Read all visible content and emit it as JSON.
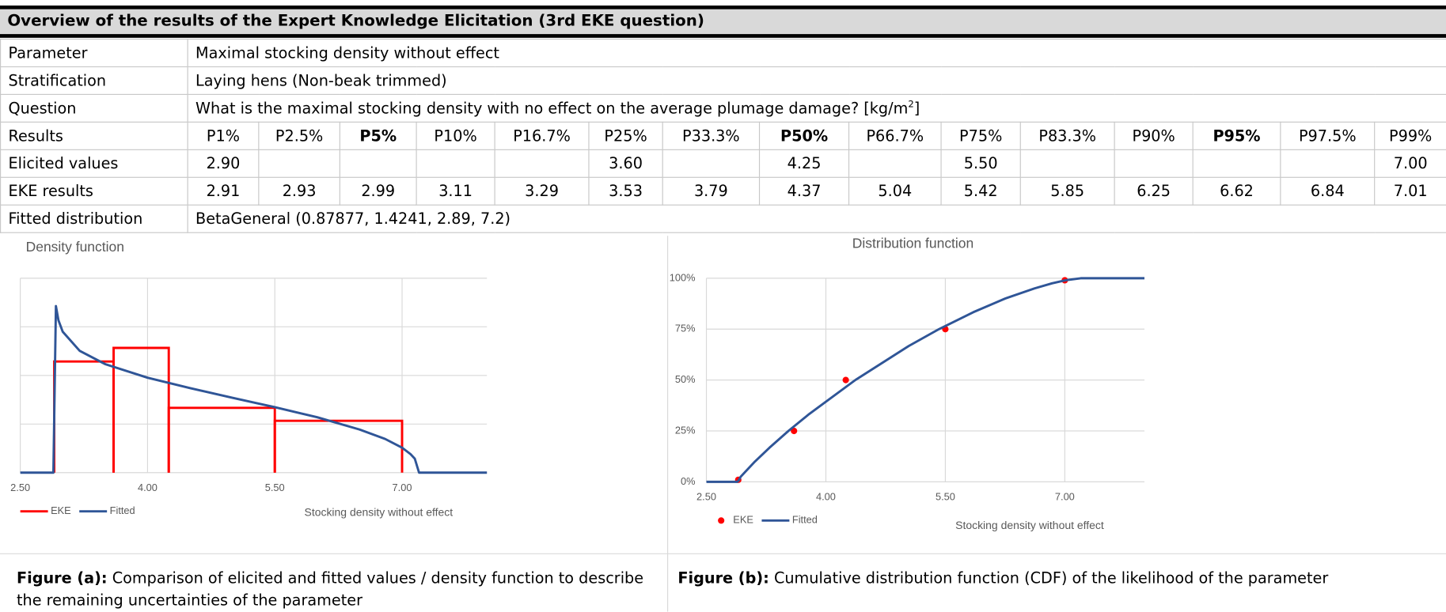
{
  "title": "Overview of the results of the Expert Knowledge Elicitation (3rd EKE question)",
  "table": {
    "rows": [
      {
        "label": "Parameter",
        "text": "Maximal stocking density without effect"
      },
      {
        "label": "Stratification",
        "text": "Laying hens (Non-beak trimmed)"
      },
      {
        "label": "Question",
        "text": "What is the maximal stocking density with no effect on the average plumage damage? [kg/m",
        "sup": "2",
        "after": "]"
      },
      {
        "label": "Results",
        "cells": [
          "P1%",
          "P2.5%",
          "P5%",
          "P10%",
          "P16.7%",
          "P25%",
          "P33.3%",
          "P50%",
          "P66.7%",
          "P75%",
          "P83.3%",
          "P90%",
          "P95%",
          "P97.5%",
          "P99%"
        ]
      },
      {
        "label": "Elicited values",
        "cells": [
          "2.90",
          null,
          null,
          null,
          null,
          "3.60",
          null,
          "4.25",
          null,
          "5.50",
          null,
          null,
          null,
          null,
          "7.00"
        ]
      },
      {
        "label": "EKE results",
        "cells": [
          "2.91",
          "2.93",
          "2.99",
          "3.11",
          "3.29",
          "3.53",
          "3.79",
          "4.37",
          "5.04",
          "5.42",
          "5.85",
          "6.25",
          "6.62",
          "6.84",
          "7.01"
        ]
      },
      {
        "label": "Fitted distribution",
        "text": "BetaGeneral (0.87877, 1.4241, 2.89, 7.2)"
      }
    ]
  },
  "chart_data": [
    {
      "type": "histogram",
      "title": "Density function",
      "x_label": "Stocking density without effect",
      "xlim": [
        2.5,
        8.0
      ],
      "xticks": [
        {
          "value": 2.5,
          "label": "2.50"
        },
        {
          "value": 4.0,
          "label": "4.00"
        },
        {
          "value": 5.5,
          "label": "5.50"
        },
        {
          "value": 7.0,
          "label": "7.00"
        }
      ],
      "ylim": [
        0,
        0.6
      ],
      "yticks": [
        0,
        0.15,
        0.3,
        0.45,
        0.6
      ],
      "grid": true,
      "series": [
        {
          "name": "EKE",
          "type": "histogram",
          "color": "#ff0000",
          "bins": [
            2.9,
            3.6,
            4.25,
            5.5,
            7.0
          ],
          "values": [
            0.343,
            0.385,
            0.2,
            0.16
          ]
        },
        {
          "name": "Fitted",
          "type": "line",
          "color": "#2f5597",
          "x": [
            2.5,
            2.89,
            2.92,
            2.95,
            3.0,
            3.2,
            3.5,
            4.0,
            4.5,
            5.0,
            5.5,
            6.0,
            6.5,
            6.8,
            7.0,
            7.1,
            7.15,
            7.2,
            8.0
          ],
          "values": [
            0,
            0,
            0.514,
            0.47,
            0.435,
            0.376,
            0.335,
            0.293,
            0.261,
            0.231,
            0.202,
            0.171,
            0.133,
            0.104,
            0.077,
            0.057,
            0.043,
            0,
            0
          ]
        }
      ]
    },
    {
      "type": "line",
      "title": "Distribution function",
      "x_label": "Stocking density without effect",
      "xlim": [
        2.5,
        8.0
      ],
      "xticks": [
        {
          "value": 2.5,
          "label": "2.50"
        },
        {
          "value": 4.0,
          "label": "4.00"
        },
        {
          "value": 5.5,
          "label": "5.50"
        },
        {
          "value": 7.0,
          "label": "7.00"
        }
      ],
      "ylim": [
        0,
        100
      ],
      "yticks": [
        {
          "value": 0,
          "label": "0%"
        },
        {
          "value": 25,
          "label": "25%"
        },
        {
          "value": 50,
          "label": "50%"
        },
        {
          "value": 75,
          "label": "75%"
        },
        {
          "value": 100,
          "label": "100%"
        }
      ],
      "grid": true,
      "series": [
        {
          "name": "EKE",
          "type": "scatter",
          "color": "#ff0000",
          "x": [
            2.9,
            3.6,
            4.25,
            5.5,
            7.0
          ],
          "values": [
            1,
            25,
            50,
            75,
            99
          ]
        },
        {
          "name": "Fitted",
          "type": "line",
          "color": "#2f5597",
          "x": [
            2.5,
            2.89,
            2.91,
            2.93,
            2.99,
            3.11,
            3.29,
            3.53,
            3.79,
            4.37,
            5.04,
            5.42,
            5.85,
            6.25,
            6.62,
            6.84,
            7.01,
            7.2,
            8.0
          ],
          "values": [
            0,
            0,
            1,
            2.5,
            5,
            10,
            16.7,
            25,
            33.3,
            50,
            66.7,
            75,
            83.3,
            90,
            95,
            97.5,
            99,
            100,
            100
          ]
        }
      ]
    }
  ],
  "captions": [
    {
      "label": "Figure (a):",
      "text": " Comparison of elicited and fitted values / density function to describe the remaining uncertainties of the parameter"
    },
    {
      "label": "Figure (b):",
      "text": " Cumulative distribution function (CDF) of the likelihood of the parameter"
    }
  ]
}
